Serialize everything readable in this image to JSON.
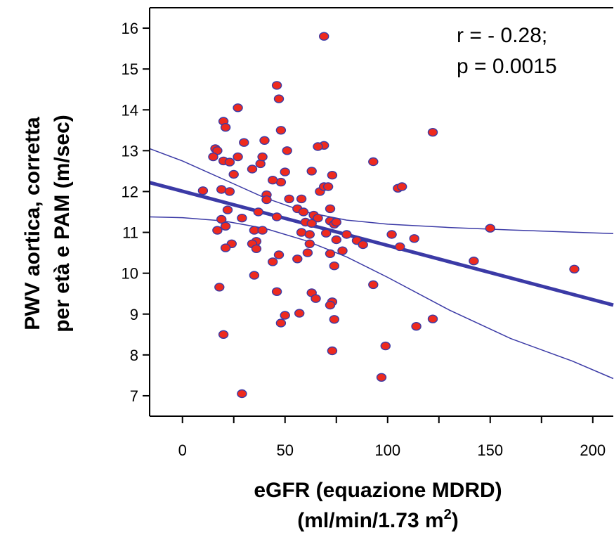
{
  "chart_data": {
    "type": "scatter",
    "ylabel_line1": "PWV aortica, corretta",
    "ylabel_line2": "per età e PAM (m/sec)",
    "xlabel_line1": "eGFR (equazione MDRD)",
    "xlabel_line2_base": "(ml/min/1.73 m",
    "xlabel_line2_sup": "2",
    "xlabel_line2_end": ")",
    "annotation_line1": "r = - 0.28;",
    "annotation_line2": "p = 0.0015",
    "xlim": [
      -16,
      210
    ],
    "ylim": [
      6.5,
      16.5
    ],
    "x_ticks": [
      0,
      50,
      100,
      150,
      200
    ],
    "x_minor_ticks": [
      25,
      75,
      125,
      175
    ],
    "y_ticks": [
      7,
      8,
      9,
      10,
      11,
      12,
      13,
      14,
      15,
      16
    ],
    "grid": false,
    "colors": {
      "point_fill": "#ee2a1e",
      "point_stroke": "#3b3aa6",
      "line": "#3b3aa6"
    },
    "regression_line": [
      [
        -16,
        12.22
      ],
      [
        210,
        9.22
      ]
    ],
    "ci_upper": [
      [
        -16,
        13.05
      ],
      [
        0,
        12.75
      ],
      [
        20,
        12.3
      ],
      [
        40,
        11.85
      ],
      [
        60,
        11.5
      ],
      [
        80,
        11.3
      ],
      [
        100,
        11.2
      ],
      [
        130,
        11.12
      ],
      [
        160,
        11.06
      ],
      [
        210,
        10.97
      ]
    ],
    "ci_lower": [
      [
        -16,
        11.38
      ],
      [
        0,
        11.36
      ],
      [
        20,
        11.28
      ],
      [
        40,
        11.1
      ],
      [
        60,
        10.8
      ],
      [
        80,
        10.4
      ],
      [
        100,
        9.9
      ],
      [
        130,
        9.1
      ],
      [
        160,
        8.4
      ],
      [
        190,
        7.85
      ],
      [
        210,
        7.42
      ]
    ],
    "points": [
      [
        69,
        15.8
      ],
      [
        46,
        14.6
      ],
      [
        47,
        14.27
      ],
      [
        27,
        14.05
      ],
      [
        20,
        13.72
      ],
      [
        21,
        13.57
      ],
      [
        48,
        13.5
      ],
      [
        122,
        13.45
      ],
      [
        69,
        13.13
      ],
      [
        66,
        13.1
      ],
      [
        16,
        13.05
      ],
      [
        17,
        13.0
      ],
      [
        30,
        13.2
      ],
      [
        40,
        13.25
      ],
      [
        51,
        13.0
      ],
      [
        15,
        12.85
      ],
      [
        20,
        12.75
      ],
      [
        23,
        12.72
      ],
      [
        27,
        12.85
      ],
      [
        34,
        12.55
      ],
      [
        38,
        12.68
      ],
      [
        39,
        12.85
      ],
      [
        93,
        12.73
      ],
      [
        63,
        12.5
      ],
      [
        25,
        12.42
      ],
      [
        48,
        12.23
      ],
      [
        50,
        12.48
      ],
      [
        73,
        12.4
      ],
      [
        10,
        12.02
      ],
      [
        19,
        12.05
      ],
      [
        23,
        12.0
      ],
      [
        44,
        12.28
      ],
      [
        67,
        12.0
      ],
      [
        69,
        12.12
      ],
      [
        71,
        12.12
      ],
      [
        105,
        12.08
      ],
      [
        107,
        12.12
      ],
      [
        58,
        11.82
      ],
      [
        41,
        11.92
      ],
      [
        41,
        11.8
      ],
      [
        52,
        11.82
      ],
      [
        22,
        11.55
      ],
      [
        37,
        11.5
      ],
      [
        56,
        11.58
      ],
      [
        59,
        11.5
      ],
      [
        64,
        11.42
      ],
      [
        66,
        11.35
      ],
      [
        72,
        11.58
      ],
      [
        29,
        11.35
      ],
      [
        19,
        11.32
      ],
      [
        46,
        11.38
      ],
      [
        60,
        11.25
      ],
      [
        63,
        11.22
      ],
      [
        72,
        11.28
      ],
      [
        74,
        11.2
      ],
      [
        75,
        11.25
      ],
      [
        150,
        11.1
      ],
      [
        17,
        11.05
      ],
      [
        21,
        11.15
      ],
      [
        35,
        11.05
      ],
      [
        39,
        11.05
      ],
      [
        58,
        11.0
      ],
      [
        62,
        10.95
      ],
      [
        70,
        10.98
      ],
      [
        80,
        10.95
      ],
      [
        102,
        10.95
      ],
      [
        113,
        10.85
      ],
      [
        36,
        10.78
      ],
      [
        34,
        10.72
      ],
      [
        24,
        10.72
      ],
      [
        21,
        10.62
      ],
      [
        62,
        10.72
      ],
      [
        75,
        10.82
      ],
      [
        85,
        10.8
      ],
      [
        88,
        10.7
      ],
      [
        106,
        10.65
      ],
      [
        36,
        10.6
      ],
      [
        47,
        10.45
      ],
      [
        56,
        10.35
      ],
      [
        61,
        10.5
      ],
      [
        72,
        10.48
      ],
      [
        78,
        10.55
      ],
      [
        142,
        10.3
      ],
      [
        44,
        10.28
      ],
      [
        74,
        10.18
      ],
      [
        191,
        10.1
      ],
      [
        35,
        9.95
      ],
      [
        18,
        9.66
      ],
      [
        93,
        9.72
      ],
      [
        46,
        9.55
      ],
      [
        63,
        9.52
      ],
      [
        65,
        9.38
      ],
      [
        73,
        9.3
      ],
      [
        72,
        9.22
      ],
      [
        57,
        9.02
      ],
      [
        50,
        8.97
      ],
      [
        48,
        8.78
      ],
      [
        74,
        8.87
      ],
      [
        114,
        8.7
      ],
      [
        122,
        8.88
      ],
      [
        20,
        8.5
      ],
      [
        99,
        8.22
      ],
      [
        73,
        8.1
      ],
      [
        97,
        7.45
      ],
      [
        29,
        7.05
      ]
    ]
  }
}
